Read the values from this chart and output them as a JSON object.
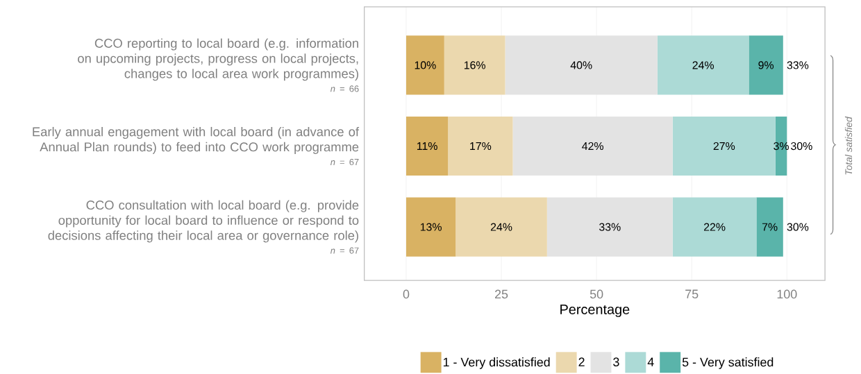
{
  "chart_data": {
    "type": "bar",
    "orientation": "horizontal",
    "stacked": true,
    "categories": [
      "CCO reporting to local board (e.g. information on upcoming projects, progress on local projects, changes to local area work programmes)",
      "Early annual engagement with local board (in advance of Annual Plan rounds) to feed into CCO work programme",
      "CCO consultation with local board (e.g. provide opportunity for local board to influence or respond to decisions affecting their local area or governance role)"
    ],
    "series": [
      {
        "name": "1 - Very dissatisfied",
        "color": "#d9b263",
        "values": [
          10,
          11,
          13
        ],
        "value_labels": [
          "10%",
          "11%",
          "13%"
        ]
      },
      {
        "name": "2",
        "color": "#ebd8ae",
        "values": [
          16,
          17,
          24
        ],
        "value_labels": [
          "16%",
          "17%",
          "24%"
        ]
      },
      {
        "name": "3",
        "color": "#e3e3e3",
        "values": [
          40,
          42,
          33
        ],
        "value_labels": [
          "40%",
          "42%",
          "33%"
        ]
      },
      {
        "name": "4",
        "color": "#acdad6",
        "values": [
          24,
          27,
          22
        ],
        "value_labels": [
          "24%",
          "27%",
          "22%"
        ]
      },
      {
        "name": "5 - Very satisfied",
        "color": "#5ab4aa",
        "values": [
          9,
          3,
          7
        ],
        "value_labels": [
          "9%",
          "3%",
          "7%"
        ]
      }
    ],
    "xlim": [
      -11,
      110
    ],
    "xticks": [
      0,
      25,
      50,
      75,
      100
    ],
    "xlabel": "Percentage",
    "grid": "x",
    "legend": "bottom",
    "annotations": [
      "*n* = 66",
      "*n* = 67",
      "*n* = 67",
      "33%",
      "30%",
      "30%",
      "Total satisfied"
    ]
  }
}
